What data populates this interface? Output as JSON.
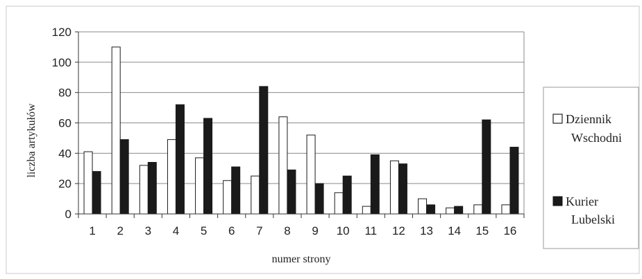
{
  "chart_data": {
    "type": "bar",
    "title": "",
    "xlabel": "numer strony",
    "ylabel": "liczba artykułów",
    "ylim": [
      0,
      120
    ],
    "yticks": [
      0,
      20,
      40,
      60,
      80,
      100,
      120
    ],
    "categories": [
      "1",
      "2",
      "3",
      "4",
      "5",
      "6",
      "7",
      "8",
      "9",
      "10",
      "11",
      "12",
      "13",
      "14",
      "15",
      "16"
    ],
    "grid": true,
    "legend_position": "right",
    "series": [
      {
        "name_lines": [
          "Dziennik",
          "Wschodni"
        ],
        "color": "#ffffff",
        "values": [
          41,
          110,
          32,
          49,
          37,
          22,
          25,
          64,
          52,
          14,
          5,
          35,
          10,
          4,
          6,
          6
        ]
      },
      {
        "name_lines": [
          "Kurier",
          "Lubelski"
        ],
        "color": "#1a1a1a",
        "values": [
          28,
          49,
          34,
          72,
          63,
          31,
          84,
          29,
          20,
          25,
          39,
          33,
          6,
          5,
          62,
          44
        ]
      }
    ]
  }
}
